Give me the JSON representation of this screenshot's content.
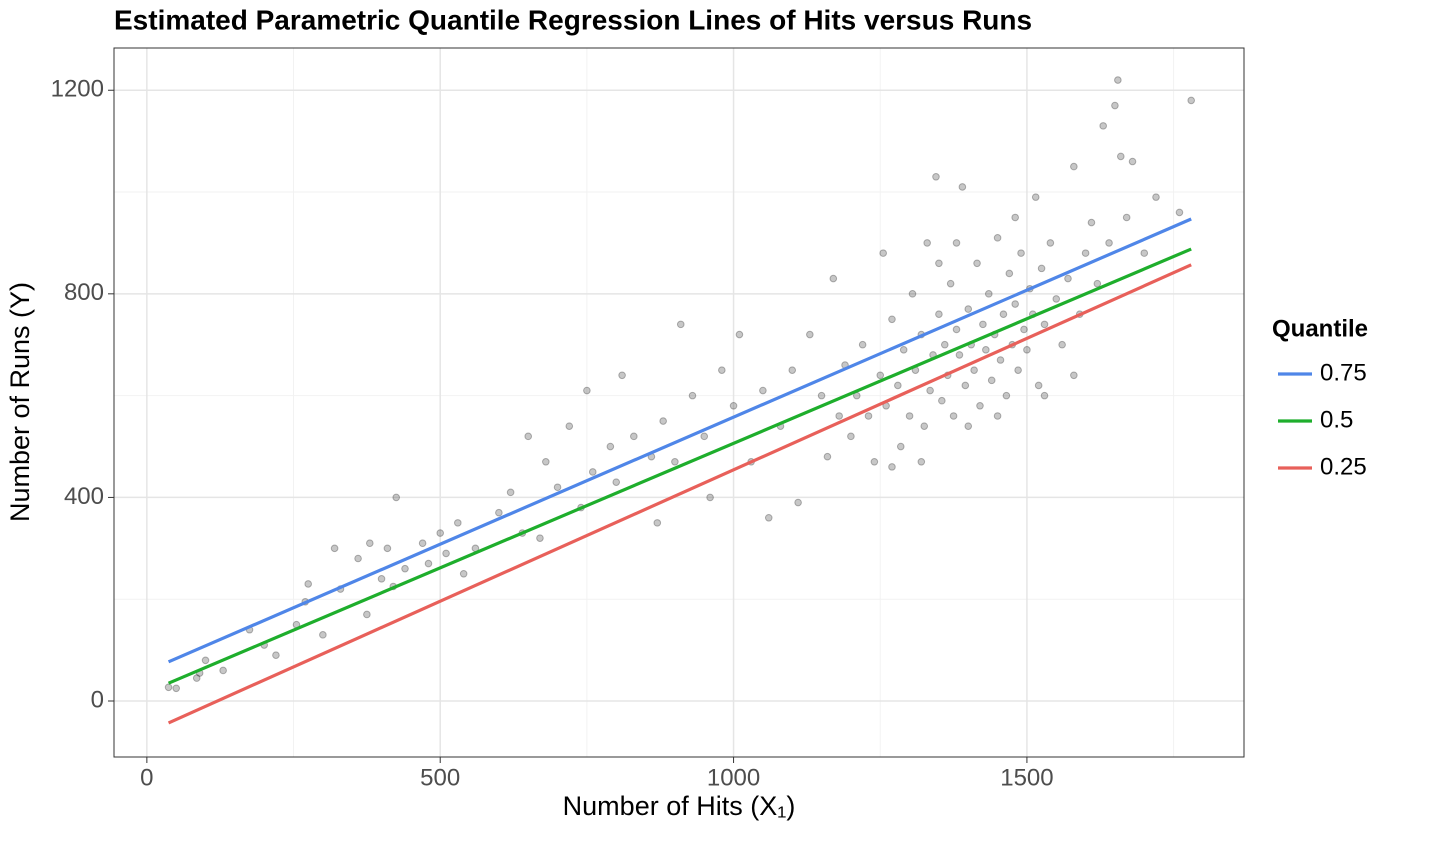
{
  "chart_data": {
    "type": "scatter",
    "title": "Estimated Parametric Quantile Regression Lines of Hits versus Runs",
    "x_label": "Number of Hits (X₁)",
    "y_label": "Number of Runs (Y)",
    "xlim": [
      -56,
      1870
    ],
    "ylim": [
      -110,
      1283
    ],
    "xticks": [
      0,
      500,
      1000,
      1500
    ],
    "yticks": [
      0,
      400,
      800,
      1200
    ],
    "x_minor_ticks": [
      250,
      750,
      1250,
      1750
    ],
    "y_minor_ticks": [
      200,
      600,
      1000
    ],
    "grid": true,
    "legend_title": "Quantile",
    "legend_position": "right",
    "points": {
      "color": "#000000",
      "x": [
        37,
        50,
        85,
        90,
        100,
        130,
        175,
        200,
        220,
        255,
        270,
        275,
        300,
        320,
        330,
        360,
        375,
        380,
        400,
        410,
        420,
        425,
        440,
        470,
        480,
        500,
        510,
        530,
        540,
        560,
        600,
        620,
        640,
        650,
        670,
        680,
        700,
        720,
        740,
        750,
        760,
        790,
        800,
        810,
        830,
        860,
        870,
        880,
        900,
        910,
        930,
        950,
        960,
        980,
        1000,
        1010,
        1030,
        1050,
        1060,
        1080,
        1100,
        1110,
        1130,
        1150,
        1160,
        1170,
        1180,
        1190,
        1200,
        1210,
        1220,
        1230,
        1240,
        1250,
        1255,
        1260,
        1270,
        1280,
        1285,
        1290,
        1300,
        1305,
        1310,
        1320,
        1325,
        1330,
        1335,
        1340,
        1345,
        1350,
        1355,
        1360,
        1365,
        1370,
        1375,
        1380,
        1385,
        1390,
        1395,
        1400,
        1405,
        1410,
        1415,
        1420,
        1425,
        1430,
        1435,
        1440,
        1445,
        1450,
        1455,
        1460,
        1465,
        1470,
        1475,
        1480,
        1485,
        1490,
        1495,
        1500,
        1505,
        1510,
        1515,
        1520,
        1525,
        1530,
        1540,
        1550,
        1560,
        1570,
        1580,
        1590,
        1600,
        1610,
        1620,
        1630,
        1640,
        1650,
        1655,
        1660,
        1670,
        1680,
        1700,
        1720,
        1760,
        1780,
        1580,
        1530,
        1350,
        1400,
        1320,
        1450,
        1270,
        1380,
        1480
      ],
      "y": [
        27,
        25,
        45,
        55,
        80,
        60,
        140,
        110,
        90,
        150,
        195,
        230,
        130,
        300,
        220,
        280,
        170,
        310,
        240,
        300,
        225,
        400,
        260,
        310,
        270,
        330,
        290,
        350,
        250,
        300,
        370,
        410,
        330,
        520,
        320,
        470,
        420,
        540,
        380,
        610,
        450,
        500,
        430,
        640,
        520,
        480,
        350,
        550,
        470,
        740,
        600,
        520,
        400,
        650,
        580,
        720,
        470,
        610,
        360,
        540,
        650,
        390,
        720,
        600,
        480,
        830,
        560,
        660,
        520,
        600,
        700,
        560,
        470,
        640,
        880,
        580,
        750,
        620,
        500,
        690,
        560,
        800,
        650,
        720,
        540,
        900,
        610,
        680,
        1030,
        760,
        590,
        700,
        640,
        820,
        560,
        730,
        680,
        1010,
        620,
        770,
        700,
        650,
        860,
        580,
        740,
        690,
        800,
        630,
        720,
        910,
        670,
        760,
        600,
        840,
        700,
        780,
        650,
        880,
        730,
        690,
        810,
        760,
        990,
        620,
        850,
        740,
        900,
        790,
        700,
        830,
        1050,
        760,
        880,
        940,
        820,
        1130,
        900,
        1170,
        1220,
        1070,
        950,
        1060,
        880,
        990,
        960,
        1180,
        640,
        600,
        860,
        540,
        470,
        560,
        460,
        900,
        950
      ]
    },
    "series": [
      {
        "name": "0.75",
        "color": "#4f86e8",
        "x": [
          37,
          1780
        ],
        "values": [
          77,
          947
        ]
      },
      {
        "name": "0.5",
        "color": "#1eae2c",
        "x": [
          37,
          1780
        ],
        "values": [
          35,
          888
        ]
      },
      {
        "name": "0.25",
        "color": "#e8605a",
        "x": [
          37,
          1780
        ],
        "values": [
          -43,
          857
        ]
      }
    ]
  }
}
